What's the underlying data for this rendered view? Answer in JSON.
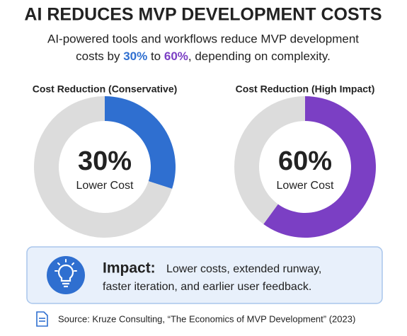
{
  "title": "AI REDUCES MVP DEVELOPMENT COSTS",
  "subtitle": {
    "line1": "AI-powered tools and workflows reduce MVP development",
    "before": "costs by ",
    "low": "30%",
    "middle": " to ",
    "high": "60%",
    "after": ", depending on complexity."
  },
  "chart_data": [
    {
      "type": "donut",
      "title": "Cost Reduction (Conservative)",
      "categories": [
        "Lower Cost",
        null
      ],
      "values": [
        30,
        70
      ],
      "value_labels": [
        "30%",
        null
      ],
      "colors": [
        "#2f6fd0",
        "#dcdcdc"
      ]
    },
    {
      "type": "donut",
      "title": "Cost Reduction (High Impact)",
      "categories": [
        "Lower Cost",
        null
      ],
      "values": [
        60,
        40
      ],
      "value_labels": [
        "60%",
        null
      ],
      "colors": [
        "#7b3fc4",
        "#dcdcdc"
      ]
    }
  ],
  "impact": {
    "label": "Impact:",
    "lines": [
      "Lower costs, extended runway,",
      "faster iteration, and earlier user feedback."
    ]
  },
  "source": "Source: Kruze Consulting, “The Economics of MVP Development” (2023)"
}
